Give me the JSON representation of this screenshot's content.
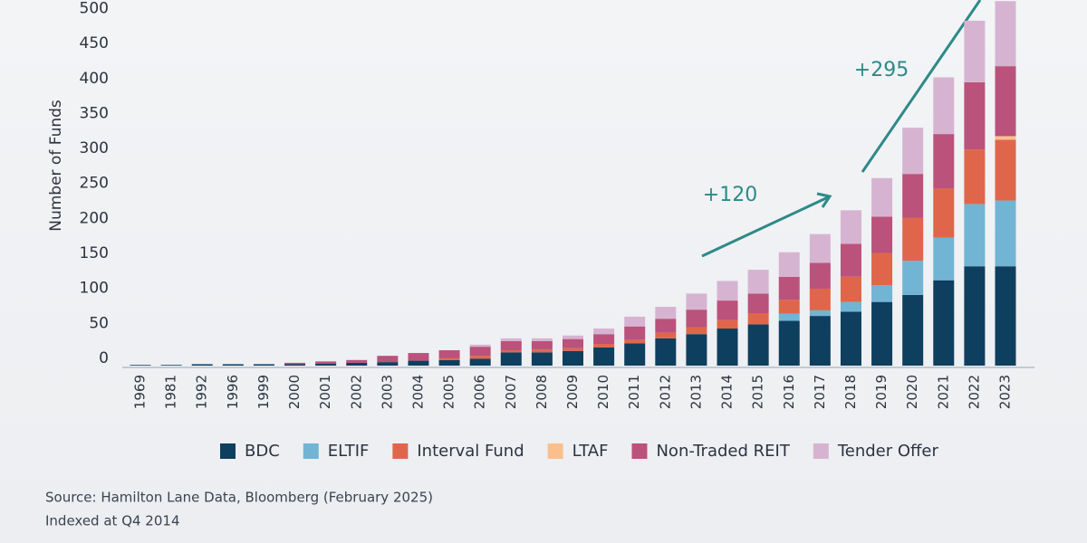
{
  "chart_data": {
    "type": "stacked_bar",
    "y_label": "Number of Funds",
    "categories": [
      "1969",
      "1981",
      "1992",
      "1996",
      "1999",
      "2000",
      "2001",
      "2002",
      "2003",
      "2004",
      "2005",
      "2006",
      "2007",
      "2008",
      "2009",
      "2010",
      "2011",
      "2012",
      "2013",
      "2014",
      "2015",
      "2016",
      "2017",
      "2018",
      "2019",
      "2020",
      "2021",
      "2022",
      "2023"
    ],
    "series": [
      {
        "name": "BDC",
        "color": "#0e3f5f",
        "values": [
          1,
          1,
          2,
          2,
          2,
          2,
          3,
          4,
          5,
          7,
          8,
          10,
          19,
          19,
          21,
          26,
          32,
          39,
          45,
          53,
          59,
          64,
          71,
          77,
          91,
          101,
          122,
          142,
          142
        ]
      },
      {
        "name": "ELTIF",
        "color": "#72b4d3",
        "values": [
          0,
          0,
          0,
          0,
          0,
          0,
          0,
          0,
          0,
          0,
          0,
          0,
          0,
          0,
          0,
          0,
          0,
          0,
          0,
          0,
          0,
          10,
          8,
          14,
          24,
          49,
          61,
          89,
          94
        ]
      },
      {
        "name": "Interval Fund",
        "color": "#e0664b",
        "values": [
          0,
          0,
          0,
          0,
          0,
          0,
          0,
          0,
          0,
          0,
          3,
          4,
          3,
          4,
          4,
          5,
          5,
          8,
          10,
          12,
          16,
          20,
          31,
          36,
          46,
          61,
          70,
          78,
          87
        ]
      },
      {
        "name": "LTAF",
        "color": "#f9c08e",
        "values": [
          0,
          0,
          0,
          0,
          0,
          0,
          0,
          0,
          0,
          0,
          0,
          0,
          0,
          0,
          0,
          0,
          0,
          0,
          0,
          0,
          0,
          0,
          0,
          0,
          0,
          0,
          0,
          0,
          5
        ]
      },
      {
        "name": "Non-Traded REIT",
        "color": "#ba527b",
        "values": [
          0,
          0,
          0,
          0,
          0,
          2,
          3,
          4,
          9,
          11,
          11,
          13,
          13,
          12,
          13,
          14,
          19,
          20,
          25,
          28,
          28,
          33,
          37,
          47,
          52,
          63,
          78,
          96,
          100
        ]
      },
      {
        "name": "Tender Offer",
        "color": "#d6b4d1",
        "values": [
          0,
          0,
          0,
          0,
          0,
          0,
          0,
          0,
          0,
          0,
          0,
          3,
          4,
          4,
          5,
          8,
          14,
          17,
          23,
          28,
          34,
          35,
          41,
          48,
          55,
          66,
          81,
          88,
          93
        ]
      }
    ],
    "ylim": [
      0,
      520
    ],
    "yticks": [
      0,
      50,
      100,
      150,
      200,
      250,
      300,
      350,
      400,
      450,
      500
    ],
    "annotations": [
      "+120",
      "+295"
    ],
    "source": "Source: Hamilton Lane Data, Bloomberg (February 2025)",
    "note": "Indexed at Q4 2014"
  }
}
